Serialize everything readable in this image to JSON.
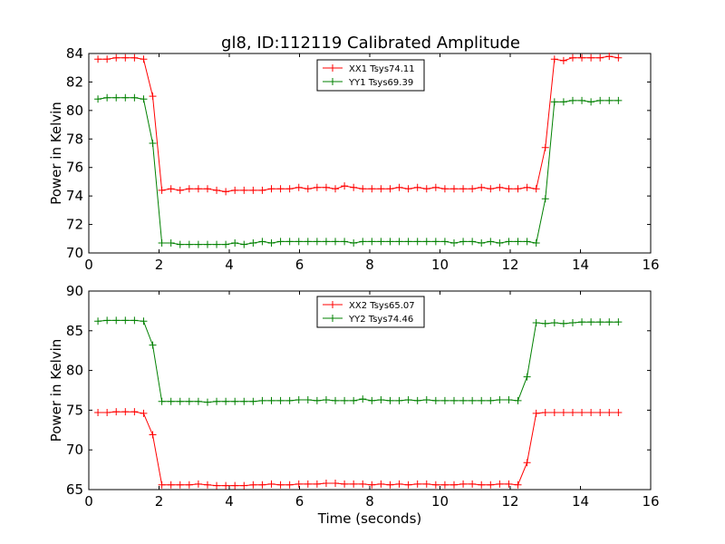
{
  "figure_title": "gl8, ID:112119 Calibrated Amplitude",
  "chart_data": [
    {
      "type": "line",
      "xlabel": "",
      "ylabel": "Power in Kelvin",
      "xlim": [
        0,
        16
      ],
      "ylim": [
        70,
        84
      ],
      "xticks": [
        "0",
        "2",
        "4",
        "6",
        "8",
        "10",
        "12",
        "14",
        "16"
      ],
      "yticks": [
        "70",
        "72",
        "74",
        "76",
        "78",
        "80",
        "82",
        "84"
      ],
      "legend_position": "upper-center",
      "x": [
        0.26,
        0.52,
        0.78,
        1.04,
        1.3,
        1.56,
        1.82,
        2.08,
        2.34,
        2.6,
        2.86,
        3.12,
        3.38,
        3.64,
        3.9,
        4.16,
        4.42,
        4.68,
        4.94,
        5.2,
        5.46,
        5.72,
        5.98,
        6.24,
        6.5,
        6.76,
        7.02,
        7.28,
        7.54,
        7.8,
        8.06,
        8.32,
        8.58,
        8.84,
        9.1,
        9.36,
        9.62,
        9.88,
        10.14,
        10.4,
        10.66,
        10.92,
        11.18,
        11.44,
        11.7,
        11.96,
        12.22,
        12.48,
        12.74,
        13.0,
        13.26,
        13.52,
        13.78,
        14.04,
        14.3,
        14.56,
        14.82,
        15.08
      ],
      "series": [
        {
          "name": "XX1 Tsys74.11",
          "color": "#ff0000",
          "values": [
            83.6,
            83.6,
            83.7,
            83.7,
            83.7,
            83.6,
            81.0,
            74.4,
            74.5,
            74.4,
            74.5,
            74.5,
            74.5,
            74.4,
            74.3,
            74.4,
            74.4,
            74.4,
            74.4,
            74.5,
            74.5,
            74.5,
            74.6,
            74.5,
            74.6,
            74.6,
            74.5,
            74.7,
            74.6,
            74.5,
            74.5,
            74.5,
            74.5,
            74.6,
            74.5,
            74.6,
            74.5,
            74.6,
            74.5,
            74.5,
            74.5,
            74.5,
            74.6,
            74.5,
            74.6,
            74.5,
            74.5,
            74.6,
            74.5,
            77.4,
            83.6,
            83.5,
            83.7,
            83.7,
            83.7,
            83.7,
            83.8,
            83.7
          ]
        },
        {
          "name": "YY1 Tsys69.39",
          "color": "#008000",
          "values": [
            80.8,
            80.9,
            80.9,
            80.9,
            80.9,
            80.8,
            77.7,
            70.7,
            70.7,
            70.6,
            70.6,
            70.6,
            70.6,
            70.6,
            70.6,
            70.7,
            70.6,
            70.7,
            70.8,
            70.7,
            70.8,
            70.8,
            70.8,
            70.8,
            70.8,
            70.8,
            70.8,
            70.8,
            70.7,
            70.8,
            70.8,
            70.8,
            70.8,
            70.8,
            70.8,
            70.8,
            70.8,
            70.8,
            70.8,
            70.7,
            70.8,
            70.8,
            70.7,
            70.8,
            70.7,
            70.8,
            70.8,
            70.8,
            70.7,
            73.8,
            80.6,
            80.6,
            80.7,
            80.7,
            80.6,
            80.7,
            80.7,
            80.7
          ]
        }
      ]
    },
    {
      "type": "line",
      "xlabel": "Time (seconds)",
      "ylabel": "Power in Kelvin",
      "xlim": [
        0,
        16
      ],
      "ylim": [
        65,
        90
      ],
      "xticks": [
        "0",
        "2",
        "4",
        "6",
        "8",
        "10",
        "12",
        "14",
        "16"
      ],
      "yticks": [
        "65",
        "70",
        "75",
        "80",
        "85",
        "90"
      ],
      "legend_position": "upper-center",
      "x": [
        0.26,
        0.52,
        0.78,
        1.04,
        1.3,
        1.56,
        1.82,
        2.08,
        2.34,
        2.6,
        2.86,
        3.12,
        3.38,
        3.64,
        3.9,
        4.16,
        4.42,
        4.68,
        4.94,
        5.2,
        5.46,
        5.72,
        5.98,
        6.24,
        6.5,
        6.76,
        7.02,
        7.28,
        7.54,
        7.8,
        8.06,
        8.32,
        8.58,
        8.84,
        9.1,
        9.36,
        9.62,
        9.88,
        10.14,
        10.4,
        10.66,
        10.92,
        11.18,
        11.44,
        11.7,
        11.96,
        12.22,
        12.48,
        12.74,
        13.0,
        13.26,
        13.52,
        13.78,
        14.04,
        14.3,
        14.56,
        14.82,
        15.08
      ],
      "series": [
        {
          "name": "XX2 Tsys65.07",
          "color": "#ff0000",
          "values": [
            74.7,
            74.7,
            74.8,
            74.8,
            74.8,
            74.6,
            71.9,
            65.6,
            65.6,
            65.6,
            65.6,
            65.7,
            65.6,
            65.5,
            65.5,
            65.5,
            65.5,
            65.6,
            65.6,
            65.7,
            65.6,
            65.6,
            65.7,
            65.7,
            65.7,
            65.8,
            65.8,
            65.7,
            65.7,
            65.7,
            65.6,
            65.7,
            65.6,
            65.7,
            65.6,
            65.7,
            65.7,
            65.6,
            65.6,
            65.6,
            65.7,
            65.7,
            65.6,
            65.6,
            65.7,
            65.7,
            65.6,
            68.4,
            74.6,
            74.7,
            74.7,
            74.7,
            74.7,
            74.7,
            74.7,
            74.7,
            74.7,
            74.7
          ]
        },
        {
          "name": "YY2 Tsys74.46",
          "color": "#008000",
          "values": [
            86.2,
            86.3,
            86.3,
            86.3,
            86.3,
            86.2,
            83.2,
            76.1,
            76.1,
            76.1,
            76.1,
            76.1,
            76.0,
            76.1,
            76.1,
            76.1,
            76.1,
            76.1,
            76.2,
            76.2,
            76.2,
            76.2,
            76.3,
            76.3,
            76.2,
            76.3,
            76.2,
            76.2,
            76.2,
            76.4,
            76.2,
            76.3,
            76.2,
            76.2,
            76.3,
            76.2,
            76.3,
            76.2,
            76.2,
            76.2,
            76.2,
            76.2,
            76.2,
            76.2,
            76.3,
            76.3,
            76.2,
            79.2,
            86.0,
            85.9,
            86.0,
            85.9,
            86.0,
            86.1,
            86.1,
            86.1,
            86.1,
            86.1
          ]
        }
      ]
    }
  ]
}
